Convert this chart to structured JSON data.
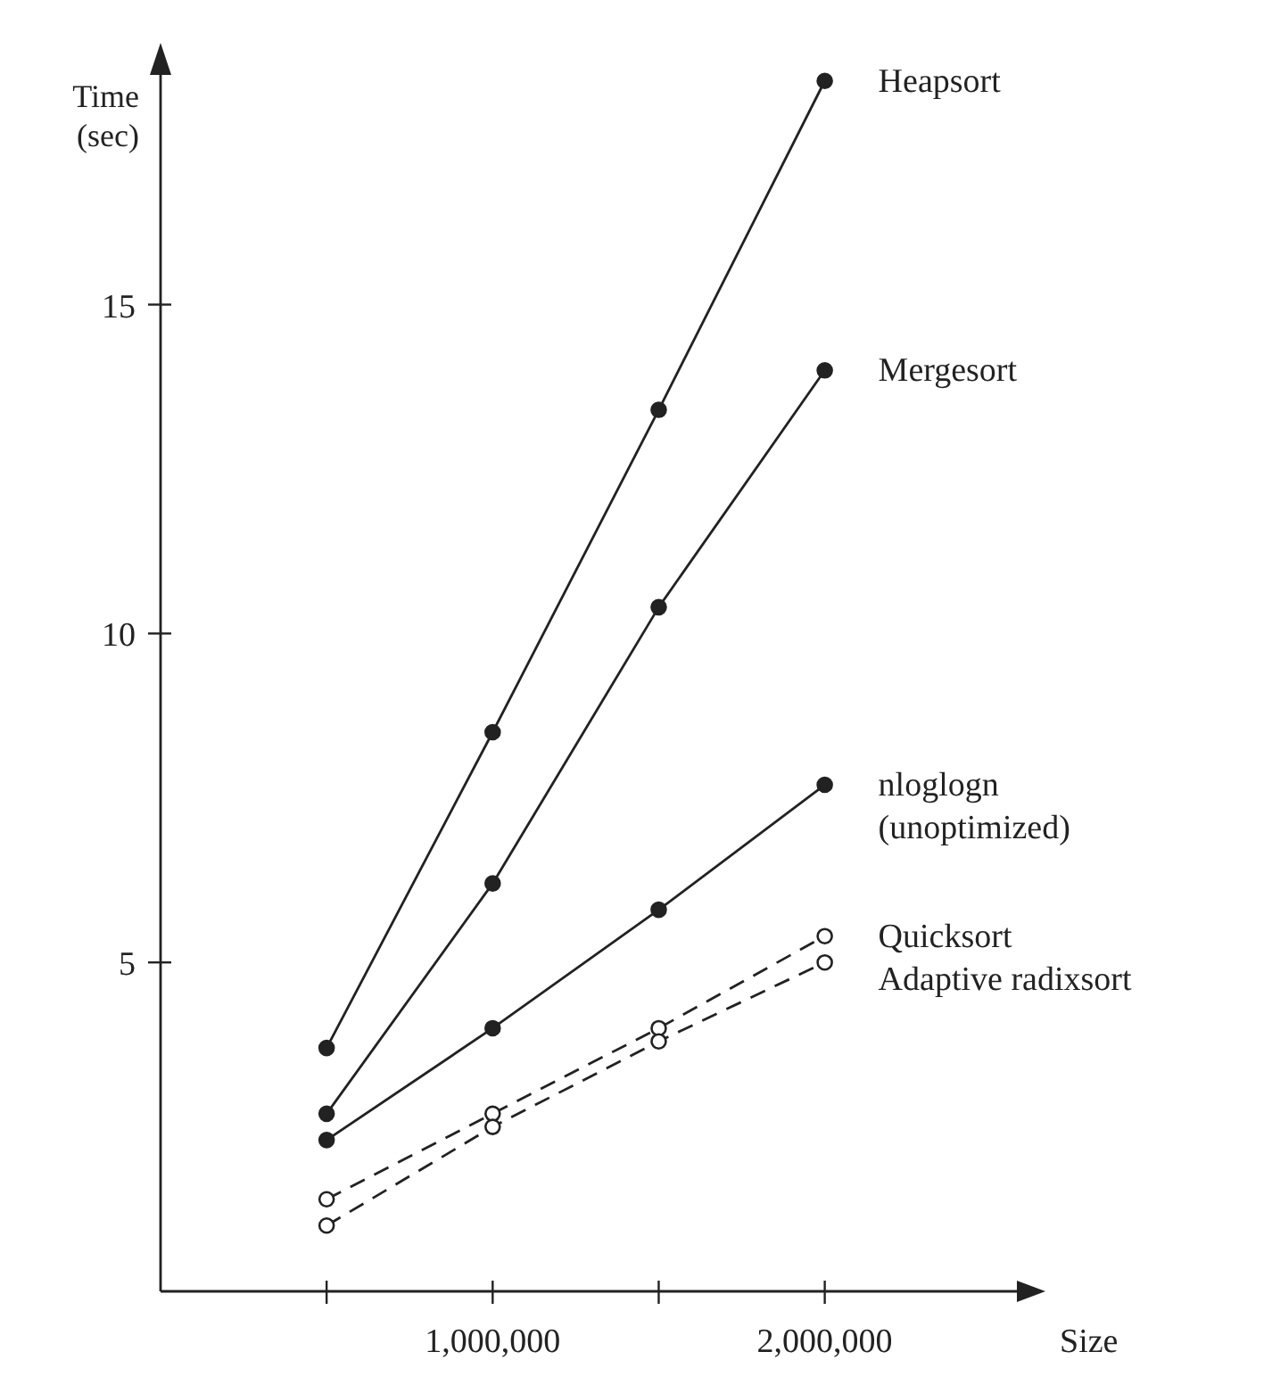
{
  "chart_data": {
    "type": "line",
    "xlabel": "Size",
    "ylabel": "Time\n(sec)",
    "x": [
      500000,
      1000000,
      1500000,
      2000000
    ],
    "xlim": [
      0,
      2600000
    ],
    "xticks": [
      {
        "value": 500000,
        "label": null
      },
      {
        "value": 1000000,
        "label": "1,000,000"
      },
      {
        "value": 1500000,
        "label": null
      },
      {
        "value": 2000000,
        "label": "2,000,000"
      }
    ],
    "ylim": [
      0,
      18.6
    ],
    "yticks": [
      5,
      10,
      15
    ],
    "grid": false,
    "marker": "circle",
    "series": [
      {
        "name": "Heapsort",
        "color": "#222222",
        "line_style": "solid",
        "values": [
          3.7,
          8.5,
          13.4,
          18.4
        ]
      },
      {
        "name": "Mergesort",
        "color": "#222222",
        "line_style": "solid",
        "values": [
          2.7,
          6.2,
          10.4,
          14.0
        ]
      },
      {
        "name": "nloglogn\n(unoptimized)",
        "color": "#222222",
        "line_style": "solid",
        "values": [
          2.3,
          4.0,
          5.8,
          7.7
        ]
      },
      {
        "name": "Quicksort",
        "color": "#222222",
        "line_style": "dashed",
        "values": [
          1.4,
          2.7,
          4.0,
          5.4
        ]
      },
      {
        "name": "Adaptive radixsort",
        "color": "#222222",
        "line_style": "dashed",
        "values": [
          1.0,
          2.5,
          3.8,
          5.0
        ]
      }
    ]
  }
}
